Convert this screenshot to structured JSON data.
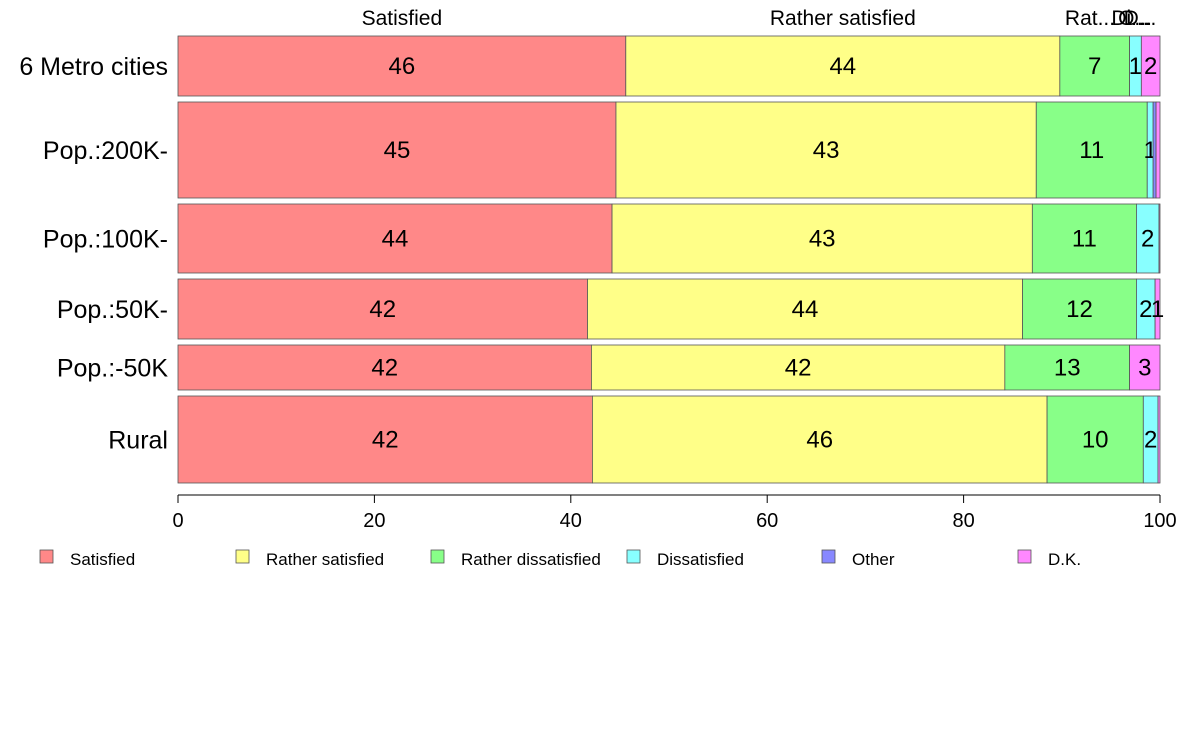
{
  "chart_data": {
    "type": "bar",
    "orientation": "horizontal",
    "stacked": true,
    "categories": [
      "6 Metro cities",
      "Pop.:200K-",
      "Pop.:100K-",
      "Pop.:50K-",
      "Pop.:-50K",
      "Rural"
    ],
    "series": [
      {
        "name": "Satisfied",
        "color": "#ff8888",
        "values": [
          45.6,
          44.6,
          44.2,
          41.7,
          42.1,
          42.2
        ],
        "labels": [
          "46",
          "45",
          "44",
          "42",
          "42",
          "42"
        ]
      },
      {
        "name": "Rather satisfied",
        "color": "#ffff88",
        "values": [
          44.2,
          42.8,
          42.8,
          44.3,
          42.1,
          46.3
        ],
        "labels": [
          "44",
          "43",
          "43",
          "44",
          "42",
          "46"
        ]
      },
      {
        "name": "Rather dissatisfied",
        "color": "#88ff88",
        "values": [
          7.1,
          11.3,
          10.6,
          11.6,
          12.7,
          9.8
        ],
        "labels": [
          "7",
          "11",
          "11",
          "12",
          "13",
          "10"
        ]
      },
      {
        "name": "Dissatisfied",
        "color": "#88ffff",
        "values": [
          1.2,
          0.6,
          2.3,
          1.9,
          0.0,
          1.5
        ],
        "labels": [
          "1",
          "1",
          "2",
          "2",
          "",
          "2"
        ]
      },
      {
        "name": "Other",
        "color": "#8888ff",
        "values": [
          0.0,
          0.3,
          0.0,
          0.0,
          0.0,
          0.0
        ],
        "labels": [
          "",
          "",
          "",
          "",
          "",
          ""
        ]
      },
      {
        "name": "D.K.",
        "color": "#ff88ff",
        "values": [
          1.9,
          0.4,
          0.1,
          0.5,
          3.1,
          0.2
        ],
        "labels": [
          "2",
          "",
          "",
          "1",
          "3",
          ""
        ]
      }
    ],
    "row_weights": [
      1.0,
      1.6,
      1.15,
      1.0,
      0.75,
      1.45
    ],
    "top_labels": [
      "Satisfied",
      "Rather satisfied",
      "Rat...",
      "Di...",
      "O...",
      "D..."
    ],
    "xlim": [
      0,
      100
    ],
    "xticks": [
      "0",
      "20",
      "40",
      "60",
      "80",
      "100"
    ],
    "legend_position": "bottom",
    "grid": false
  }
}
